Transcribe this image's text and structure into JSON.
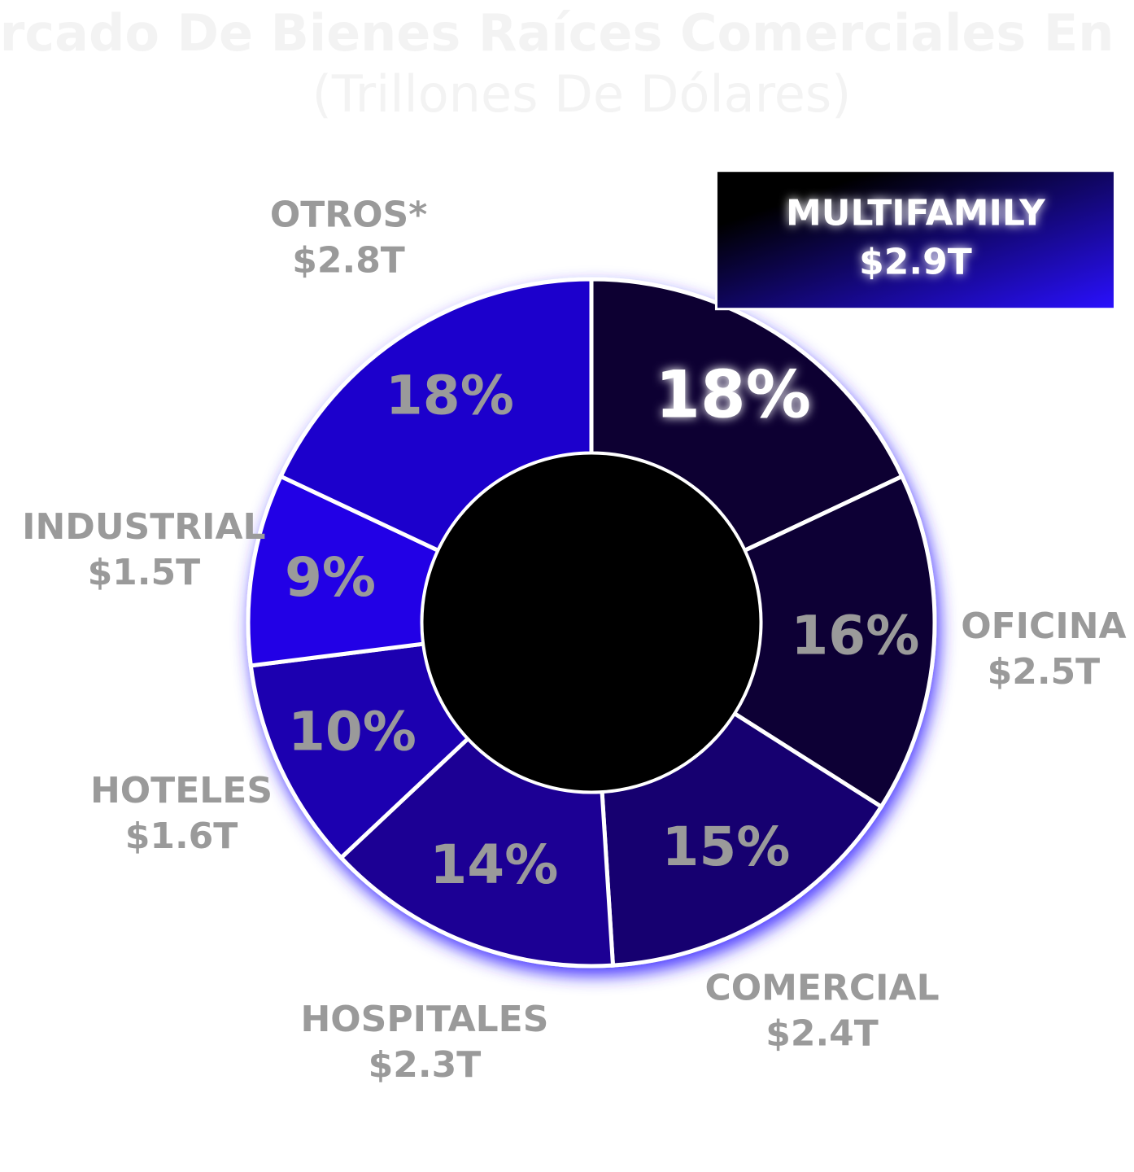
{
  "chart_data": {
    "type": "donut",
    "title": "Mercado De Bienes Raíces Comerciales En USA",
    "subtitle": "(Trillones De Dólares)",
    "categories": [
      "MULTIFAMILY",
      "OFICINA",
      "COMERCIAL",
      "HOSPITALES",
      "HOTELES",
      "INDUSTRIAL",
      "OTROS*"
    ],
    "values": [
      18,
      16,
      15,
      14,
      10,
      9,
      18
    ],
    "value_labels": [
      "18%",
      "16%",
      "15%",
      "14%",
      "10%",
      "9%",
      "18%"
    ],
    "amounts": [
      2.9,
      2.5,
      2.4,
      2.3,
      1.6,
      1.5,
      2.8
    ],
    "amount_labels": [
      "$2.9T",
      "$2.5T",
      "$2.4T",
      "$2.3T",
      "$1.6T",
      "$1.5T",
      "$2.8T"
    ],
    "colors": [
      "#0a0030",
      "#0b0036",
      "#130070",
      "#1a0094",
      "#1c00b0",
      "#2400e6",
      "#1f00cc"
    ],
    "highlight": 0
  }
}
